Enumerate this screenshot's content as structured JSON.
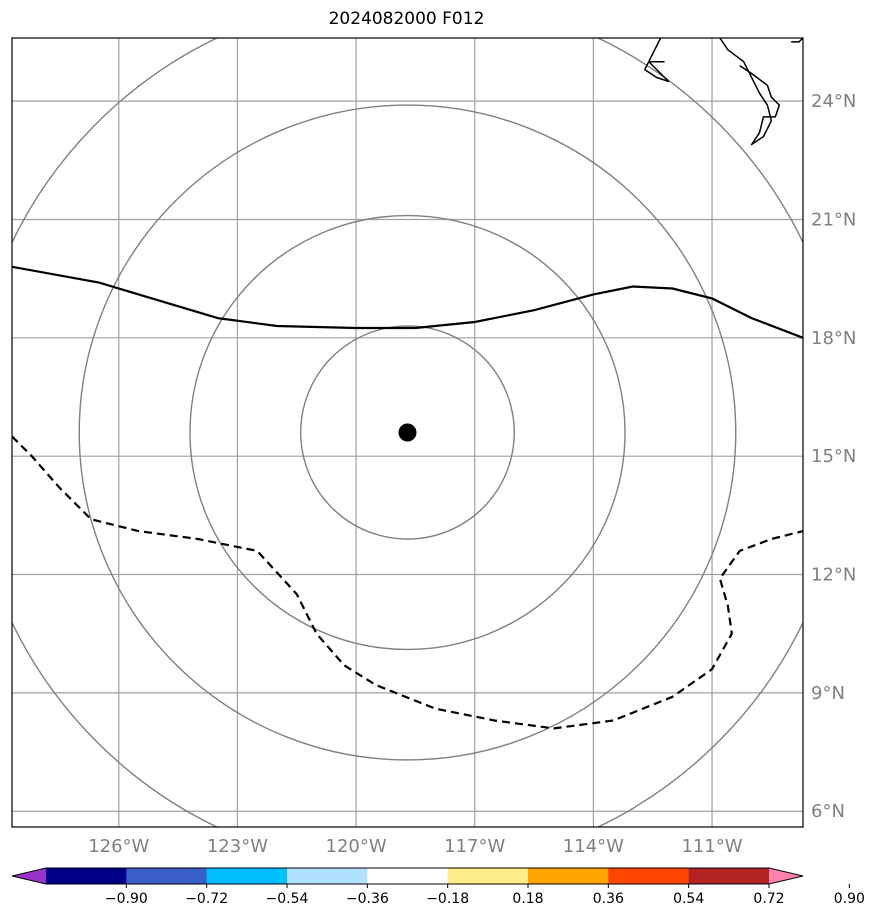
{
  "title": "2024082000 F012",
  "map": {
    "extent": {
      "lon_min": -128.7,
      "lon_max": -108.7,
      "lat_min": 5.6,
      "lat_max": 25.6
    },
    "lon_ticks": [
      {
        "value": -126,
        "label": "126°W"
      },
      {
        "value": -123,
        "label": "123°W"
      },
      {
        "value": -120,
        "label": "120°W"
      },
      {
        "value": -117,
        "label": "117°W"
      },
      {
        "value": -114,
        "label": "114°W"
      },
      {
        "value": -111,
        "label": "111°W"
      }
    ],
    "lat_ticks": [
      {
        "value": 6,
        "label": "6°N"
      },
      {
        "value": 9,
        "label": "9°N"
      },
      {
        "value": 12,
        "label": "12°N"
      },
      {
        "value": 15,
        "label": "15°N"
      },
      {
        "value": 18,
        "label": "18°N"
      },
      {
        "value": 21,
        "label": "21°N"
      },
      {
        "value": 24,
        "label": "24°N"
      }
    ],
    "grid": true,
    "grid_color": "#a0a0a0",
    "ring_color": "#808080",
    "storm_center": {
      "lon": -118.7,
      "lat": 15.6
    },
    "range_rings_deg": [
      2.7,
      5.5,
      8.3,
      11.1
    ],
    "solid_contour": [
      [
        -128.7,
        19.8
      ],
      [
        -126.5,
        19.4
      ],
      [
        -125.5,
        19.1
      ],
      [
        -123.5,
        18.5
      ],
      [
        -122.0,
        18.3
      ],
      [
        -120.0,
        18.25
      ],
      [
        -118.5,
        18.25
      ],
      [
        -117.0,
        18.4
      ],
      [
        -115.5,
        18.7
      ],
      [
        -114.0,
        19.1
      ],
      [
        -113.0,
        19.3
      ],
      [
        -112.0,
        19.25
      ],
      [
        -111.0,
        19.0
      ],
      [
        -110.0,
        18.5
      ],
      [
        -108.7,
        18.0
      ]
    ],
    "dashed_contour": [
      [
        -128.7,
        15.5
      ],
      [
        -128.2,
        15.0
      ],
      [
        -127.5,
        14.2
      ],
      [
        -126.7,
        13.4
      ],
      [
        -125.5,
        13.1
      ],
      [
        -124.0,
        12.9
      ],
      [
        -122.5,
        12.6
      ],
      [
        -121.5,
        11.5
      ],
      [
        -121.0,
        10.5
      ],
      [
        -120.3,
        9.7
      ],
      [
        -119.5,
        9.2
      ],
      [
        -118.0,
        8.6
      ],
      [
        -116.5,
        8.3
      ],
      [
        -115.0,
        8.1
      ],
      [
        -113.5,
        8.3
      ],
      [
        -112.0,
        8.9
      ],
      [
        -111.0,
        9.6
      ],
      [
        -110.5,
        10.5
      ],
      [
        -110.6,
        11.2
      ],
      [
        -110.8,
        11.9
      ],
      [
        -110.3,
        12.6
      ],
      [
        -109.5,
        12.9
      ],
      [
        -108.7,
        13.1
      ]
    ],
    "coastlines": [
      [
        [
          -112.3,
          25.6
        ],
        [
          -112.5,
          25.2
        ],
        [
          -112.7,
          24.8
        ],
        [
          -112.4,
          24.6
        ],
        [
          -112.1,
          24.5
        ],
        [
          -112.3,
          24.7
        ],
        [
          -112.6,
          25.0
        ],
        [
          -112.2,
          25.0
        ]
      ],
      [
        [
          -110.8,
          25.6
        ],
        [
          -110.6,
          25.3
        ],
        [
          -110.2,
          25.0
        ],
        [
          -110.0,
          24.6
        ],
        [
          -109.8,
          24.2
        ],
        [
          -109.6,
          23.9
        ],
        [
          -109.5,
          23.5
        ],
        [
          -109.7,
          23.1
        ],
        [
          -110.0,
          22.9
        ],
        [
          -109.8,
          23.2
        ],
        [
          -109.7,
          23.6
        ],
        [
          -109.4,
          23.6
        ],
        [
          -109.3,
          23.9
        ],
        [
          -109.5,
          24.1
        ],
        [
          -109.6,
          24.4
        ],
        [
          -110.0,
          24.7
        ],
        [
          -110.3,
          24.9
        ]
      ],
      [
        [
          -109.0,
          25.5
        ],
        [
          -108.8,
          25.5
        ],
        [
          -108.7,
          25.6
        ]
      ]
    ]
  },
  "colorbar": {
    "colors": [
      "#9932cc",
      "#00008b",
      "#3a5fcd",
      "#00bfff",
      "#b0e2ff",
      "#ffffff",
      "#ffec8b",
      "#ffa500",
      "#ff4500",
      "#b22222",
      "#ff82ab"
    ],
    "tick_labels": [
      "−0.90",
      "−0.72",
      "−0.54",
      "−0.36",
      "−0.18",
      "0.18",
      "0.36",
      "0.54",
      "0.72",
      "0.90"
    ]
  }
}
